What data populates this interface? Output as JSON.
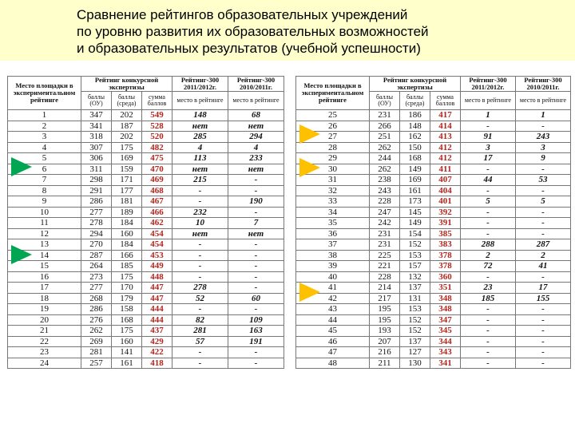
{
  "title": {
    "line1": "Сравнение рейтингов образовательных учреждений",
    "line2": "по уровню развития их образовательных возможностей",
    "line3": "и образовательных результатов (учебной успешности)"
  },
  "headers": {
    "place": "Место площадки в экспериментальном рейтинге",
    "contest": "Рейтинг конкурсной экспертизы",
    "top300_2012": "Рейтинг-300 2011/2012г.",
    "top300_2011": "Рейтинг-300 2010/2011г.",
    "points_school": "баллы (ОУ)",
    "points_env": "баллы (среда)",
    "points_sum": "сумма баллов",
    "rank_place": "место в рейтинге"
  },
  "colors": {
    "green_arrow": "#00a651",
    "yellow_arrow": "#ffc000",
    "sum_red": "#b3261e",
    "title_bg": "#ffffcc"
  },
  "left_rows": [
    [
      "1",
      "347",
      "202",
      "549",
      "148",
      "68"
    ],
    [
      "2",
      "341",
      "187",
      "528",
      "нет",
      "нет"
    ],
    [
      "3",
      "318",
      "202",
      "520",
      "285",
      "294"
    ],
    [
      "4",
      "307",
      "175",
      "482",
      "4",
      "4"
    ],
    [
      "5",
      "306",
      "169",
      "475",
      "113",
      "233"
    ],
    [
      "6",
      "311",
      "159",
      "470",
      "нет",
      "нет"
    ],
    [
      "7",
      "298",
      "171",
      "469",
      "215",
      "-"
    ],
    [
      "8",
      "291",
      "177",
      "468",
      "-",
      "-"
    ],
    [
      "9",
      "286",
      "181",
      "467",
      "-",
      "190"
    ],
    [
      "10",
      "277",
      "189",
      "466",
      "232",
      "-"
    ],
    [
      "11",
      "278",
      "184",
      "462",
      "10",
      "7"
    ],
    [
      "12",
      "294",
      "160",
      "454",
      "нет",
      "нет"
    ],
    [
      "13",
      "270",
      "184",
      "454",
      "-",
      "-"
    ],
    [
      "14",
      "287",
      "166",
      "453",
      "-",
      "-"
    ],
    [
      "15",
      "264",
      "185",
      "449",
      "-",
      "-"
    ],
    [
      "16",
      "273",
      "175",
      "448",
      "-",
      "-"
    ],
    [
      "17",
      "277",
      "170",
      "447",
      "278",
      "-"
    ],
    [
      "18",
      "268",
      "179",
      "447",
      "52",
      "60"
    ],
    [
      "19",
      "286",
      "158",
      "444",
      "-",
      "-"
    ],
    [
      "20",
      "276",
      "168",
      "444",
      "82",
      "109"
    ],
    [
      "21",
      "262",
      "175",
      "437",
      "281",
      "163"
    ],
    [
      "22",
      "269",
      "160",
      "429",
      "57",
      "191"
    ],
    [
      "23",
      "281",
      "141",
      "422",
      "-",
      "-"
    ],
    [
      "24",
      "257",
      "161",
      "418",
      "-",
      "-"
    ]
  ],
  "right_rows": [
    [
      "25",
      "231",
      "186",
      "417",
      "1",
      "1"
    ],
    [
      "26",
      "266",
      "148",
      "414",
      "-",
      "-"
    ],
    [
      "27",
      "251",
      "162",
      "413",
      "91",
      "243"
    ],
    [
      "28",
      "262",
      "150",
      "412",
      "3",
      "3"
    ],
    [
      "29",
      "244",
      "168",
      "412",
      "17",
      "9"
    ],
    [
      "30",
      "262",
      "149",
      "411",
      "-",
      "-"
    ],
    [
      "31",
      "238",
      "169",
      "407",
      "44",
      "53"
    ],
    [
      "32",
      "243",
      "161",
      "404",
      "-",
      "-"
    ],
    [
      "33",
      "228",
      "173",
      "401",
      "5",
      "5"
    ],
    [
      "34",
      "247",
      "145",
      "392",
      "-",
      "-"
    ],
    [
      "35",
      "242",
      "149",
      "391",
      "-",
      "-"
    ],
    [
      "36",
      "231",
      "154",
      "385",
      "-",
      "-"
    ],
    [
      "37",
      "231",
      "152",
      "383",
      "288",
      "287"
    ],
    [
      "38",
      "225",
      "153",
      "378",
      "2",
      "2"
    ],
    [
      "39",
      "221",
      "157",
      "378",
      "72",
      "41"
    ],
    [
      "40",
      "228",
      "132",
      "360",
      "-",
      "-"
    ],
    [
      "41",
      "214",
      "137",
      "351",
      "23",
      "17"
    ],
    [
      "42",
      "217",
      "131",
      "348",
      "185",
      "155"
    ],
    [
      "43",
      "195",
      "153",
      "348",
      "-",
      "-"
    ],
    [
      "44",
      "195",
      "152",
      "347",
      "-",
      "-"
    ],
    [
      "45",
      "193",
      "152",
      "345",
      "-",
      "-"
    ],
    [
      "46",
      "207",
      "137",
      "344",
      "-",
      "-"
    ],
    [
      "47",
      "216",
      "127",
      "343",
      "-",
      "-"
    ],
    [
      "48",
      "211",
      "130",
      "341",
      "-",
      "-"
    ]
  ]
}
